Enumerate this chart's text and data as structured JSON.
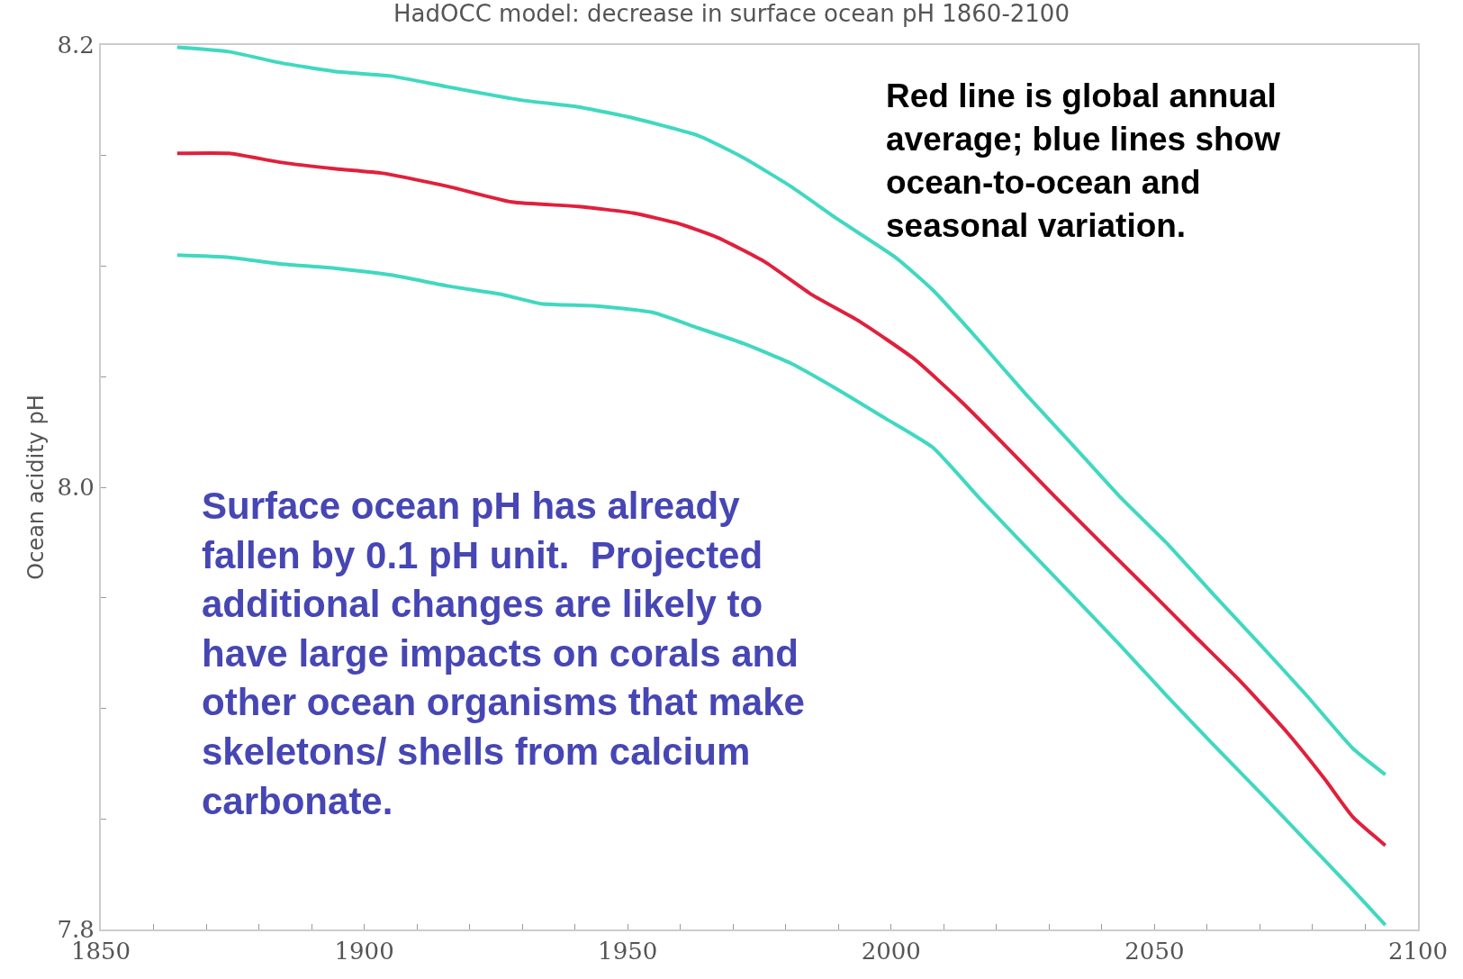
{
  "chart_data": {
    "type": "line",
    "title": "HadOCC model: decrease in surface ocean pH 1860-2100",
    "ylabel": "Ocean acidity pH",
    "xlim": [
      1850,
      2100
    ],
    "xticks": [
      1850,
      {
        "value": 1860,
        "label": null
      },
      {
        "value": 1870,
        "label": null
      },
      {
        "value": 1880,
        "label": null
      },
      {
        "value": 1890,
        "label": null
      },
      1900,
      {
        "value": 1910,
        "label": null
      },
      {
        "value": 1920,
        "label": null
      },
      {
        "value": 1930,
        "label": null
      },
      {
        "value": 1940,
        "label": null
      },
      1950,
      {
        "value": 1960,
        "label": null
      },
      {
        "value": 1970,
        "label": null
      },
      {
        "value": 1980,
        "label": null
      },
      {
        "value": 1990,
        "label": null
      },
      2000,
      {
        "value": 2010,
        "label": null
      },
      {
        "value": 2020,
        "label": null
      },
      {
        "value": 2030,
        "label": null
      },
      {
        "value": 2040,
        "label": null
      },
      2050,
      {
        "value": 2060,
        "label": null
      },
      {
        "value": 2070,
        "label": null
      },
      {
        "value": 2080,
        "label": null
      },
      {
        "value": 2090,
        "label": null
      },
      2100
    ],
    "ylim": [
      7.8,
      8.2
    ],
    "yticks": [
      7.8,
      {
        "value": 7.85,
        "label": null
      },
      {
        "value": 7.9,
        "label": null
      },
      {
        "value": 7.95,
        "label": null
      },
      {
        "value": 8.0,
        "label": "8.0"
      },
      {
        "value": 8.05,
        "label": null
      },
      {
        "value": 8.1,
        "label": null
      },
      {
        "value": 8.15,
        "label": null
      },
      8.2
    ],
    "marker": "none",
    "line_style": "solid",
    "series": [
      {
        "color": "#40d8c0",
        "x": [
          1864.5,
          1874.3,
          1884,
          1894.6,
          1905,
          1916,
          1930,
          1940.6,
          1951,
          1963.4,
          1972,
          1981,
          1990,
          2000.8,
          2008,
          2016.8,
          2025.6,
          2034.5,
          2043.3,
          2052.2,
          2061,
          2070,
          2078.8,
          2087.6,
          2093.8
        ],
        "values": [
          8.199,
          8.197,
          8.192,
          8.188,
          8.186,
          8.181,
          8.175,
          8.172,
          8.167,
          8.159,
          8.149,
          8.136,
          8.121,
          8.104,
          8.089,
          8.066,
          8.042,
          8.019,
          7.996,
          7.975,
          7.952,
          7.929,
          7.906,
          7.882,
          7.87
        ]
      },
      {
        "color": "#e0203c",
        "x": [
          1864.5,
          1874.3,
          1884,
          1894.6,
          1903.5,
          1916,
          1928,
          1940.6,
          1951,
          1960,
          1967,
          1976,
          1985,
          1994,
          2004.4,
          2013.2,
          2022,
          2031,
          2039.8,
          2048.7,
          2057.5,
          2066.4,
          2075.2,
          2082.3,
          2087.6,
          2093.8
        ],
        "values": [
          8.151,
          8.151,
          8.147,
          8.144,
          8.142,
          8.136,
          8.129,
          8.127,
          8.124,
          8.119,
          8.113,
          8.102,
          8.087,
          8.075,
          8.058,
          8.039,
          8.018,
          7.996,
          7.975,
          7.954,
          7.933,
          7.912,
          7.889,
          7.868,
          7.851,
          7.838
        ]
      },
      {
        "color": "#40d8c0",
        "x": [
          1864.5,
          1874.3,
          1884,
          1894.6,
          1905,
          1916,
          1926.5,
          1933.6,
          1944,
          1954.8,
          1963.4,
          1972,
          1981,
          1990,
          1999,
          2007.9,
          2016.8,
          2025.6,
          2034.5,
          2043.3,
          2052.2,
          2061,
          2070,
          2078.8,
          2087.6,
          2093.8
        ],
        "values": [
          8.105,
          8.104,
          8.101,
          8.099,
          8.096,
          8.091,
          8.087,
          8.083,
          8.082,
          8.079,
          8.072,
          8.065,
          8.056,
          8.044,
          8.031,
          8.018,
          7.995,
          7.973,
          7.951,
          7.929,
          7.906,
          7.884,
          7.862,
          7.84,
          7.818,
          7.802
        ]
      }
    ],
    "annotations": [
      "Red line is global annual average; blue lines show ocean-to-ocean and seasonal variation.",
      "Surface ocean pH has already fallen by 0.1 pH unit.  Projected additional changes are likely to have large impacts on corals and other ocean organisms that make skeletons/ shells from calcium carbonate."
    ]
  }
}
